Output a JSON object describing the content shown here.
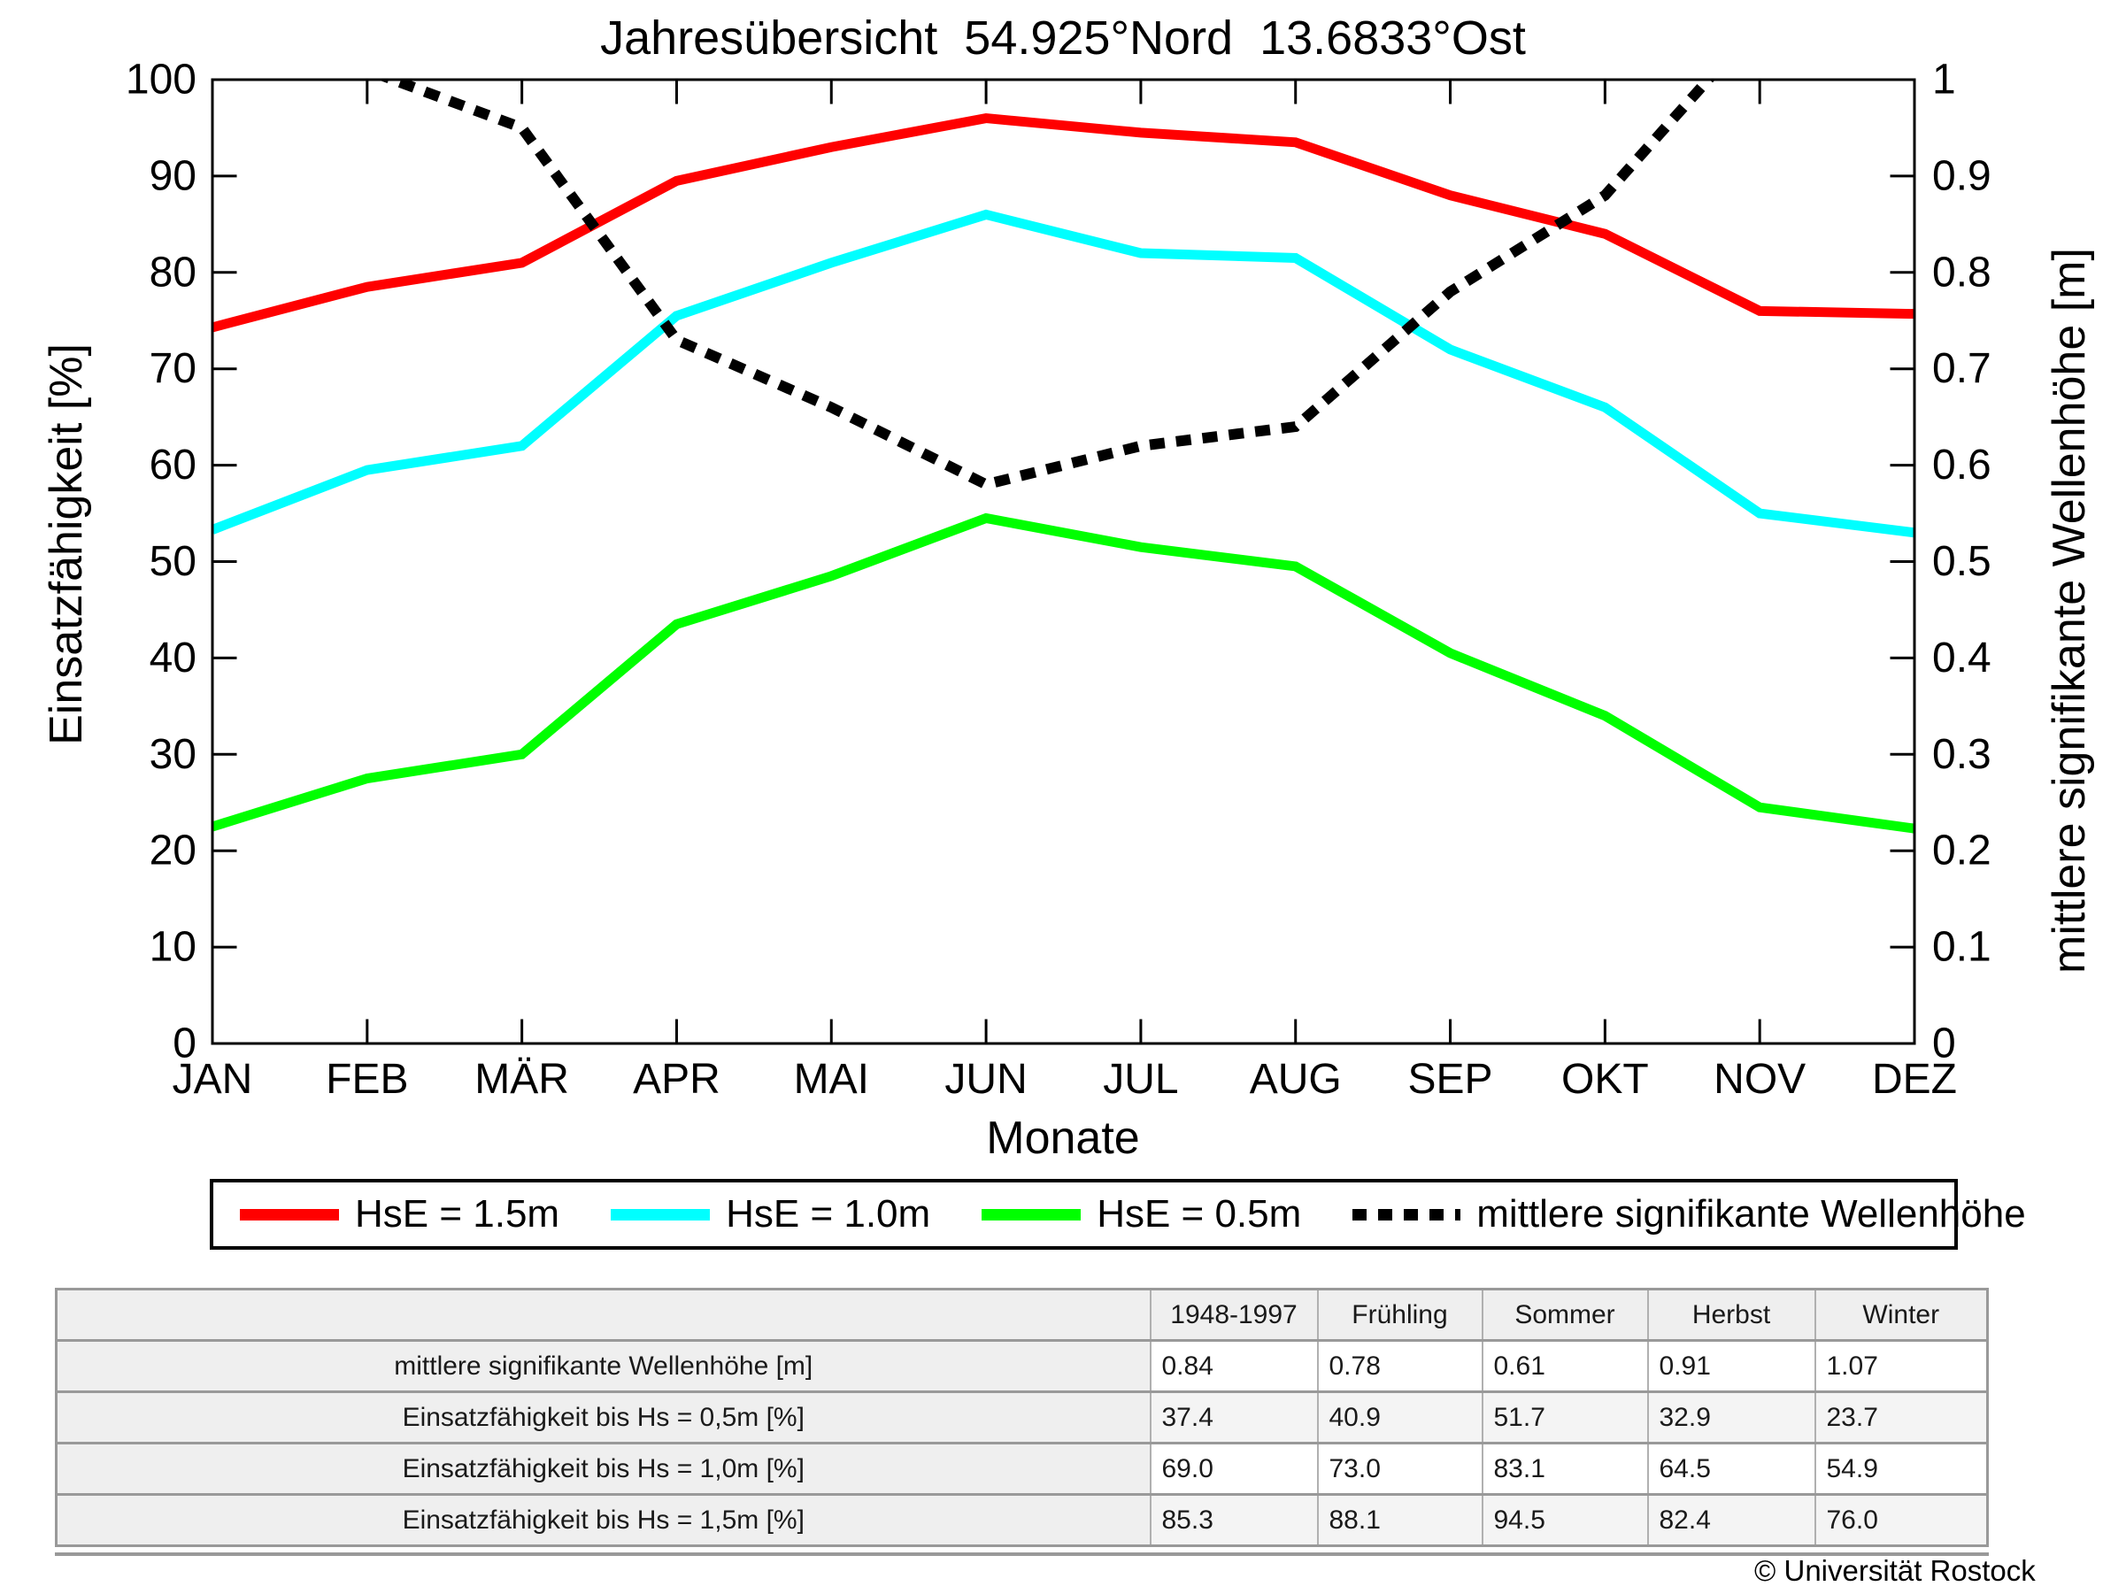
{
  "chart_data": {
    "type": "line",
    "title": "Jahresübersicht  54.925°Nord  13.6833°Ost",
    "x_label": "Monate",
    "categories": [
      "JAN",
      "FEB",
      "MÄR",
      "APR",
      "MAI",
      "JUN",
      "JUL",
      "AUG",
      "SEP",
      "OKT",
      "NOV",
      "DEZ"
    ],
    "y_left": {
      "label": "Einsatzfähigkeit [%]",
      "min": 0,
      "max": 100,
      "ticks": [
        "0",
        "10",
        "20",
        "30",
        "40",
        "50",
        "60",
        "70",
        "80",
        "90",
        "100"
      ]
    },
    "y_right": {
      "label": "mittlere signifikante Wellenhöhe [m]",
      "min": 0,
      "max": 1,
      "ticks": [
        "0",
        "0.1",
        "0.2",
        "0.3",
        "0.4",
        "0.5",
        "0.6",
        "0.7",
        "0.8",
        "0.9",
        "1"
      ]
    },
    "grid": false,
    "legend_position": "bottom",
    "series": [
      {
        "name": "HsE = 1.5m",
        "color": "#ff0000",
        "style": "solid",
        "axis": "left",
        "values": [
          74.3,
          78.5,
          81.0,
          89.5,
          93.0,
          96.0,
          94.5,
          93.5,
          88.0,
          84.0,
          76.0,
          75.7
        ]
      },
      {
        "name": "HsE = 1.0m",
        "color": "#00ffff",
        "style": "solid",
        "axis": "left",
        "values": [
          53.3,
          59.5,
          62.0,
          75.5,
          81.0,
          86.0,
          82.0,
          81.5,
          72.0,
          66.0,
          55.0,
          53.0
        ]
      },
      {
        "name": "HsE = 0.5m",
        "color": "#00ff00",
        "style": "solid",
        "axis": "left",
        "values": [
          22.5,
          27.5,
          30.0,
          43.5,
          48.5,
          54.5,
          51.5,
          49.5,
          40.5,
          34.0,
          24.5,
          22.3
        ]
      },
      {
        "name": "mittlere signifikante Wellenhöhe",
        "color": "#000000",
        "style": "dashed",
        "axis": "right",
        "values": [
          1.1,
          1.01,
          0.95,
          0.73,
          0.66,
          0.58,
          0.62,
          0.64,
          0.78,
          0.88,
          1.06,
          1.1
        ]
      }
    ]
  },
  "table": {
    "headers": [
      "",
      "1948-1997",
      "Frühling",
      "Sommer",
      "Herbst",
      "Winter"
    ],
    "rows": [
      {
        "label": "mittlere signifikante Wellenhöhe [m]",
        "values": [
          "0.84",
          "0.78",
          "0.61",
          "0.91",
          "1.07"
        ]
      },
      {
        "label": "Einsatzfähigkeit bis Hs = 0,5m [%]",
        "values": [
          "37.4",
          "40.9",
          "51.7",
          "32.9",
          "23.7"
        ]
      },
      {
        "label": "Einsatzfähigkeit bis Hs = 1,0m [%]",
        "values": [
          "69.0",
          "73.0",
          "83.1",
          "64.5",
          "54.9"
        ]
      },
      {
        "label": "Einsatzfähigkeit bis Hs = 1,5m [%]",
        "values": [
          "85.3",
          "88.1",
          "94.5",
          "82.4",
          "76.0"
        ]
      }
    ]
  },
  "footer": {
    "copyright": "© Universität Rostock"
  }
}
